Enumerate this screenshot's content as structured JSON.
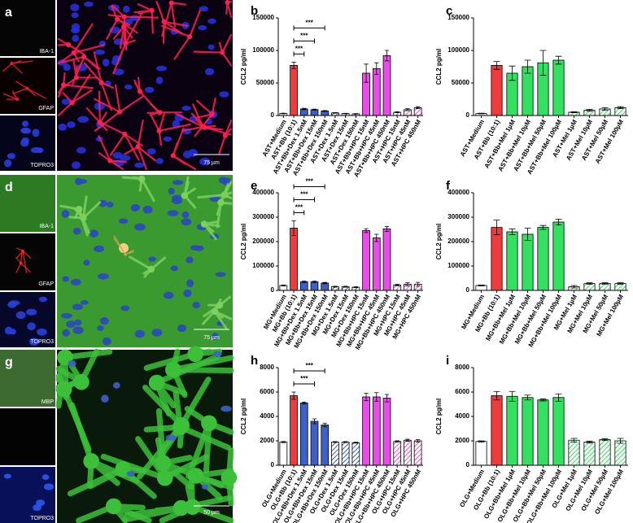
{
  "images": [
    {
      "letter": "a",
      "channels": [
        "IBA-1",
        "GFAP",
        "TOPRO3"
      ],
      "scale": "75 µm"
    },
    {
      "letter": "d",
      "channels": [
        "IBA-1",
        "GFAP",
        "TOPRO3"
      ],
      "scale": "75 µm"
    },
    {
      "letter": "g",
      "channels": [
        "MBP",
        "TOPRO3"
      ],
      "scale": "50 µm"
    }
  ],
  "chart_data": [
    {
      "type": "bar",
      "letter": "b",
      "ylabel": "CCL2 pg/ml",
      "categories": [
        "AST+Medium",
        "AST+Bb (10:1)",
        "AST+Bb+Dex 1.5nM",
        "AST+Bb+Dex 15nM",
        "AST+Bb+Dex 150nM",
        "AST+Dex 1.5nM",
        "AST+Dex 15nM",
        "AST+Dex 150nM",
        "AST+Bb+HPC 15nM",
        "AST+Bb+HPC 45nM",
        "AST+Bb+HPC 450nM",
        "AST+HPC 15nM",
        "AST+HPC 45nM",
        "AST+HPC 450nM"
      ],
      "values": [
        3000,
        77000,
        10000,
        9000,
        7000,
        4000,
        3000,
        2500,
        65000,
        72000,
        92000,
        5000,
        9000,
        12000
      ],
      "errors": [
        500,
        5000,
        1000,
        800,
        700,
        500,
        400,
        400,
        14000,
        9000,
        8000,
        800,
        1500,
        1500
      ],
      "colors": [
        "#ffffff",
        "#ef3b3b",
        "#3c5fc8",
        "#3c5fc8",
        "#3c5fc8",
        "#3c5fc8",
        "#3c5fc8",
        "#3c5fc8",
        "#e84de8",
        "#e84de8",
        "#e84de8",
        "#e84de8",
        "#e84de8",
        "#e84de8"
      ],
      "hatch": [
        false,
        false,
        false,
        false,
        false,
        true,
        true,
        true,
        false,
        false,
        false,
        true,
        true,
        true
      ],
      "ylim": [
        0,
        150000
      ],
      "yticks": [
        0,
        50000,
        100000,
        150000
      ],
      "annotations": [
        {
          "text": "***",
          "from": 1,
          "to": 2
        },
        {
          "text": "***",
          "from": 1,
          "to": 3
        },
        {
          "text": "***",
          "from": 1,
          "to": 4
        }
      ]
    },
    {
      "type": "bar",
      "letter": "c",
      "ylabel": "CCL2 pg/ml",
      "categories": [
        "AST+Medium",
        "AST+Bb (10:1)",
        "AST+Bb+Mel 1µM",
        "AST+Bb+Mel 10µM",
        "AST+Bb+Mel 50µM",
        "AST+Bb+Mel 100µM",
        "AST+Mel 1µM",
        "AST+Mel 10µM",
        "AST+Mel 50µM",
        "AST+Mel 100µM"
      ],
      "values": [
        3000,
        77000,
        65000,
        75000,
        81000,
        85000,
        5000,
        8000,
        10000,
        12000
      ],
      "errors": [
        500,
        6000,
        11000,
        10000,
        19000,
        6000,
        700,
        1500,
        2000,
        1500
      ],
      "colors": [
        "#ffffff",
        "#ef3b3b",
        "#33e060",
        "#33e060",
        "#33e060",
        "#33e060",
        "#33e060",
        "#33e060",
        "#33e060",
        "#33e060"
      ],
      "hatch": [
        false,
        false,
        false,
        false,
        false,
        false,
        true,
        true,
        true,
        true
      ],
      "ylim": [
        0,
        150000
      ],
      "yticks": [
        0,
        50000,
        100000,
        150000
      ]
    },
    {
      "type": "bar",
      "letter": "e",
      "ylabel": "CCL2 pg/ml",
      "categories": [
        "MG+Medium",
        "MG+Bb (10:1)",
        "MG+Bb+Dex 1.5nM",
        "MG+Bb+Dex 15nM",
        "MG+Bb+Dex 150nM",
        "MG+Dex 1.5nM",
        "MG+Dex 15nM",
        "MG+Dex 150nM",
        "MG+Bb+HPC 15nM",
        "MG+Bb+HPC 45nM",
        "MG+Bb+HPC 450nM",
        "MG+HPC 15nM",
        "MG+HPC 45nM",
        "MG+HPC 450nM"
      ],
      "values": [
        20000,
        255000,
        35000,
        35000,
        30000,
        15000,
        15000,
        13000,
        245000,
        215000,
        252000,
        22000,
        25000,
        25000
      ],
      "errors": [
        2000,
        30000,
        3000,
        3000,
        3000,
        2000,
        2000,
        2000,
        8000,
        15000,
        10000,
        3000,
        6000,
        8000
      ],
      "colors": [
        "#ffffff",
        "#ef3b3b",
        "#3c5fc8",
        "#3c5fc8",
        "#3c5fc8",
        "#3c5fc8",
        "#3c5fc8",
        "#3c5fc8",
        "#e84de8",
        "#e84de8",
        "#e84de8",
        "#e84de8",
        "#e84de8",
        "#e84de8"
      ],
      "hatch": [
        false,
        false,
        false,
        false,
        false,
        true,
        true,
        true,
        false,
        false,
        false,
        true,
        true,
        true
      ],
      "ylim": [
        0,
        400000
      ],
      "yticks": [
        0,
        100000,
        200000,
        300000,
        400000
      ],
      "annotations": [
        {
          "text": "***",
          "from": 1,
          "to": 2
        },
        {
          "text": "***",
          "from": 1,
          "to": 3
        },
        {
          "text": "***",
          "from": 1,
          "to": 4
        }
      ]
    },
    {
      "type": "bar",
      "letter": "f",
      "ylabel": "CCL2 pg/ml",
      "categories": [
        "MG+Medium",
        "MG+Bb (10:1)",
        "MG+Bb+Mel 1µM",
        "MG+Bb+Mel 10µM",
        "MG+Bb+Mel 50µM",
        "MG+Bb+Mel 100µM",
        "MG+Mel 1µM",
        "MG+Mel 10µM",
        "MG+Mel 50µM",
        "MG+Mel 100µM"
      ],
      "values": [
        20000,
        258000,
        240000,
        230000,
        258000,
        280000,
        15000,
        28000,
        28000,
        28000
      ],
      "errors": [
        2000,
        30000,
        12000,
        25000,
        8000,
        12000,
        5000,
        3000,
        3000,
        3000
      ],
      "colors": [
        "#ffffff",
        "#ef3b3b",
        "#33e060",
        "#33e060",
        "#33e060",
        "#33e060",
        "#33e060",
        "#33e060",
        "#33e060",
        "#33e060"
      ],
      "hatch": [
        false,
        false,
        false,
        false,
        false,
        false,
        true,
        true,
        true,
        true
      ],
      "ylim": [
        0,
        400000
      ],
      "yticks": [
        0,
        100000,
        200000,
        300000,
        400000
      ]
    },
    {
      "type": "bar",
      "letter": "h",
      "ylabel": "CCL2 pg/ml",
      "categories": [
        "OLG+Medium",
        "OLG+Bb (10:1)",
        "OLG+Bb+Dex 1.5nM",
        "OLG+Bb+Dex 15nM",
        "OLG+Bb+Dex 150nM",
        "OLG+Dex 1.5nM",
        "OLG+Dex 15nM",
        "OLG+Dex 150nM",
        "OLG+Bb+HPC 15nM",
        "OLG+Bb+HPC 45nM",
        "OLG+Bb+HPC 450nM",
        "OLG+HPC 15nM",
        "OLG+HPC 45nM",
        "OLG+HPC 450nM"
      ],
      "values": [
        1900,
        5700,
        5100,
        3600,
        3300,
        1900,
        1900,
        1850,
        5600,
        5600,
        5500,
        1950,
        2050,
        2000
      ],
      "errors": [
        50,
        300,
        80,
        200,
        150,
        40,
        40,
        40,
        300,
        350,
        300,
        60,
        80,
        100
      ],
      "colors": [
        "#ffffff",
        "#ef3b3b",
        "#3c5fc8",
        "#3c5fc8",
        "#3c5fc8",
        "#3c5fc8",
        "#3c5fc8",
        "#3c5fc8",
        "#e84de8",
        "#e84de8",
        "#e84de8",
        "#e84de8",
        "#e84de8",
        "#e84de8"
      ],
      "hatch": [
        false,
        false,
        false,
        false,
        false,
        true,
        true,
        true,
        false,
        false,
        false,
        true,
        true,
        true
      ],
      "ylim": [
        0,
        8000
      ],
      "yticks": [
        0,
        2000,
        4000,
        6000,
        8000
      ],
      "annotations": [
        {
          "text": "***",
          "from": 1,
          "to": 3
        },
        {
          "text": "***",
          "from": 1,
          "to": 4
        }
      ]
    },
    {
      "type": "bar",
      "letter": "i",
      "ylabel": "CCL2 pg/ml",
      "categories": [
        "OLG+Medium",
        "OLG+Bb (10:1)",
        "OLG+Bb+Mel 1µM",
        "OLG+Bb+Mel 10µM",
        "OLG+Bb+Mel 50µM",
        "OLG+Bb+Mel 100µM",
        "OLG+Mel 1µM",
        "OLG+Mel 10µM",
        "OLG+Mel 50µM",
        "OLG+Mel 100µM"
      ],
      "values": [
        1950,
        5700,
        5650,
        5550,
        5350,
        5550,
        2050,
        1900,
        2100,
        2000
      ],
      "errors": [
        50,
        350,
        400,
        200,
        80,
        300,
        150,
        80,
        80,
        200
      ],
      "colors": [
        "#ffffff",
        "#ef3b3b",
        "#33e060",
        "#33e060",
        "#33e060",
        "#33e060",
        "#33e060",
        "#33e060",
        "#33e060",
        "#33e060"
      ],
      "hatch": [
        false,
        false,
        false,
        false,
        false,
        false,
        true,
        true,
        true,
        true
      ],
      "ylim": [
        0,
        8000
      ],
      "yticks": [
        0,
        2000,
        4000,
        6000,
        8000
      ]
    }
  ]
}
